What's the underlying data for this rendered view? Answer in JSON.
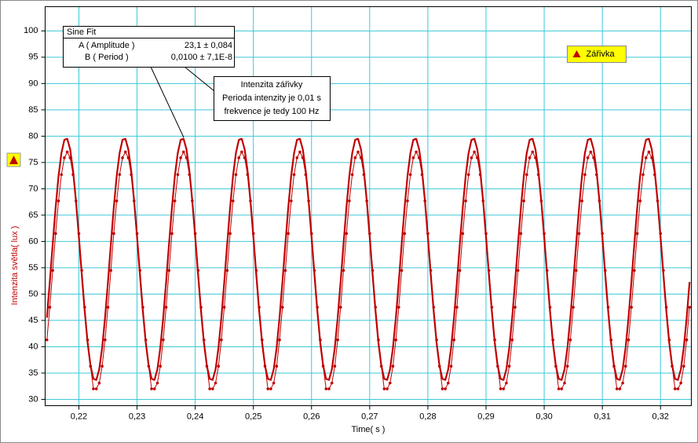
{
  "chart_data": {
    "type": "line",
    "x_label": "Time( s )",
    "y_label": "Intenzita světla( lux )",
    "xlim": [
      0.2142,
      0.3253
    ],
    "ylim": [
      28.8,
      104.6
    ],
    "xticks": [
      {
        "value": 0.22,
        "label": "0,22"
      },
      {
        "value": 0.23,
        "label": "0,23"
      },
      {
        "value": 0.24,
        "label": "0,24"
      },
      {
        "value": 0.25,
        "label": "0,25"
      },
      {
        "value": 0.26,
        "label": "0,26"
      },
      {
        "value": 0.27,
        "label": "0,27"
      },
      {
        "value": 0.28,
        "label": "0,28"
      },
      {
        "value": 0.29,
        "label": "0,29"
      },
      {
        "value": 0.3,
        "label": "0,30"
      },
      {
        "value": 0.31,
        "label": "0,31"
      },
      {
        "value": 0.32,
        "label": "0,32"
      }
    ],
    "yticks": [
      30,
      35,
      40,
      45,
      50,
      55,
      60,
      65,
      70,
      75,
      80,
      85,
      90,
      95,
      100
    ],
    "grid": true,
    "legend": "top-right",
    "x": [
      0.2145,
      0.215,
      0.2155,
      0.216,
      0.2165,
      0.217,
      0.2175,
      0.218,
      0.2185,
      0.219,
      0.2195,
      0.22,
      0.2205,
      0.221,
      0.2215,
      0.222,
      0.2225,
      0.223,
      0.2235,
      0.224,
      0.2245,
      0.225,
      0.2255,
      0.226,
      0.2265,
      0.227,
      0.2275,
      0.228,
      0.2285,
      0.229,
      0.2295,
      0.23,
      0.2305,
      0.231,
      0.2315,
      0.232,
      0.2325,
      0.233,
      0.2335,
      0.234,
      0.2345,
      0.235,
      0.2355,
      0.236,
      0.2365,
      0.237,
      0.2375,
      0.238,
      0.2385,
      0.239,
      0.2395,
      0.24,
      0.2405,
      0.241,
      0.2415,
      0.242,
      0.2425,
      0.243,
      0.2435,
      0.244,
      0.2445,
      0.245,
      0.2455,
      0.246,
      0.2465,
      0.247,
      0.2475,
      0.248,
      0.2485,
      0.249,
      0.2495,
      0.25,
      0.2505,
      0.251,
      0.2515,
      0.252,
      0.2525,
      0.253,
      0.2535,
      0.254,
      0.2545,
      0.255,
      0.2555,
      0.256,
      0.2565,
      0.257,
      0.2575,
      0.258,
      0.2585,
      0.259,
      0.2595,
      0.26,
      0.2605,
      0.261,
      0.2615,
      0.262,
      0.2625,
      0.263,
      0.2635,
      0.264,
      0.2645,
      0.265,
      0.2655,
      0.266,
      0.2665,
      0.267,
      0.2675,
      0.268,
      0.2685,
      0.269,
      0.2695,
      0.27,
      0.2705,
      0.271,
      0.2715,
      0.272,
      0.2725,
      0.273,
      0.2735,
      0.274,
      0.2745,
      0.275,
      0.2755,
      0.276,
      0.2765,
      0.277,
      0.2775,
      0.278,
      0.2785,
      0.279,
      0.2795,
      0.28,
      0.2805,
      0.281,
      0.2815,
      0.282,
      0.2825,
      0.283,
      0.2835,
      0.284,
      0.2845,
      0.285,
      0.2855,
      0.286,
      0.2865,
      0.287,
      0.2875,
      0.288,
      0.2885,
      0.289,
      0.2895,
      0.29,
      0.2905,
      0.291,
      0.2915,
      0.292,
      0.2925,
      0.293,
      0.2935,
      0.294,
      0.2945,
      0.295,
      0.2955,
      0.296,
      0.2965,
      0.297,
      0.2975,
      0.298,
      0.2985,
      0.299,
      0.2995,
      0.3,
      0.3005,
      0.301,
      0.3015,
      0.302,
      0.3025,
      0.303,
      0.3035,
      0.304,
      0.3045,
      0.305,
      0.3055,
      0.306,
      0.3065,
      0.307,
      0.3075,
      0.308,
      0.3085,
      0.309,
      0.3095,
      0.31,
      0.3105,
      0.311,
      0.3115,
      0.312,
      0.3125,
      0.313,
      0.3135,
      0.314,
      0.3145,
      0.315,
      0.3155,
      0.316,
      0.3165,
      0.317,
      0.3175,
      0.318,
      0.3185,
      0.319,
      0.3195,
      0.32,
      0.3205,
      0.321,
      0.3215,
      0.322,
      0.3225,
      0.323,
      0.3235,
      0.324,
      0.3245,
      0.325
    ],
    "series": [
      {
        "name": "Zářivka",
        "color": "#c00000",
        "markers": true,
        "values": [
          41.3,
          47.5,
          54.5,
          61.5,
          67.7,
          72.7,
          75.9,
          77.0,
          75.9,
          72.7,
          67.7,
          61.5,
          54.5,
          47.5,
          41.3,
          36.3,
          32.0,
          32.0,
          33.1,
          36.3,
          41.3,
          47.5,
          54.5,
          61.5,
          67.7,
          72.7,
          75.9,
          77.0,
          75.9,
          72.7,
          67.7,
          61.5,
          54.5,
          47.5,
          41.3,
          36.3,
          32.0,
          32.0,
          33.1,
          36.3,
          41.3,
          47.5,
          54.5,
          61.5,
          67.7,
          72.7,
          75.9,
          77.0,
          75.9,
          72.7,
          67.7,
          61.5,
          54.5,
          47.5,
          41.3,
          36.3,
          32.0,
          32.0,
          33.1,
          36.3,
          41.3,
          47.5,
          54.5,
          61.5,
          67.7,
          72.7,
          75.9,
          77.0,
          75.9,
          72.7,
          67.7,
          61.5,
          54.5,
          47.5,
          41.3,
          36.3,
          32.0,
          32.0,
          33.1,
          36.3,
          41.3,
          47.5,
          54.5,
          61.5,
          67.7,
          72.7,
          75.9,
          77.0,
          75.9,
          72.7,
          67.7,
          61.5,
          54.5,
          47.5,
          41.3,
          36.3,
          32.0,
          32.0,
          33.1,
          36.3,
          41.3,
          47.5,
          54.5,
          61.5,
          67.7,
          72.7,
          75.9,
          77.0,
          75.9,
          72.7,
          67.7,
          61.5,
          54.5,
          47.5,
          41.3,
          36.3,
          32.0,
          32.0,
          33.1,
          36.3,
          41.3,
          47.5,
          54.5,
          61.5,
          67.7,
          72.7,
          75.9,
          77.0,
          75.9,
          72.7,
          67.7,
          61.5,
          54.5,
          47.5,
          41.3,
          36.3,
          32.0,
          32.0,
          33.1,
          36.3,
          41.3,
          47.5,
          54.5,
          61.5,
          67.7,
          72.7,
          75.9,
          77.0,
          75.9,
          72.7,
          67.7,
          61.5,
          54.5,
          47.5,
          41.3,
          36.3,
          32.0,
          32.0,
          33.1,
          36.3,
          41.3,
          47.5,
          54.5,
          61.5,
          67.7,
          72.7,
          75.9,
          77.0,
          75.9,
          72.7,
          67.7,
          61.5,
          54.5,
          47.5,
          41.3,
          36.3,
          32.0,
          32.0,
          33.1,
          36.3,
          41.3,
          47.5,
          54.5,
          61.5,
          67.7,
          72.7,
          75.9,
          77.0,
          75.9,
          72.7,
          67.7,
          61.5,
          54.5,
          47.5,
          41.3,
          36.3,
          32.0,
          32.0,
          33.1,
          36.3,
          41.3,
          47.5,
          54.5,
          61.5,
          67.7,
          72.7,
          75.9,
          77.0,
          75.9,
          72.7,
          67.7,
          61.5,
          54.5,
          47.5,
          41.3,
          36.3,
          32.0,
          32.0,
          33.1,
          36.3,
          41.3,
          47.5
        ]
      },
      {
        "color": "#c00000",
        "markers": false,
        "values": [
          45.5,
          52.3,
          59.5,
          66.4,
          72.4,
          76.8,
          79.3,
          79.5,
          77.5,
          73.4,
          67.7,
          60.9,
          53.7,
          46.8,
          40.8,
          36.4,
          33.9,
          33.7,
          35.7,
          39.8,
          45.5,
          52.3,
          59.5,
          66.4,
          72.4,
          76.8,
          79.3,
          79.5,
          77.5,
          73.4,
          67.7,
          60.9,
          53.7,
          46.8,
          40.8,
          36.4,
          33.9,
          33.7,
          35.7,
          39.8,
          45.5,
          52.3,
          59.5,
          66.4,
          72.4,
          76.8,
          79.3,
          79.5,
          77.5,
          73.4,
          67.7,
          60.9,
          53.7,
          46.8,
          40.8,
          36.4,
          33.9,
          33.7,
          35.7,
          39.8,
          45.5,
          52.3,
          59.5,
          66.4,
          72.4,
          76.8,
          79.3,
          79.5,
          77.5,
          73.4,
          67.7,
          60.9,
          53.7,
          46.8,
          40.8,
          36.4,
          33.9,
          33.7,
          35.7,
          39.8,
          45.5,
          52.3,
          59.5,
          66.4,
          72.4,
          76.8,
          79.3,
          79.5,
          77.5,
          73.4,
          67.7,
          60.9,
          53.7,
          46.8,
          40.8,
          36.4,
          33.9,
          33.7,
          35.7,
          39.8,
          45.5,
          52.3,
          59.5,
          66.4,
          72.4,
          76.8,
          79.3,
          79.5,
          77.5,
          73.4,
          67.7,
          60.9,
          53.7,
          46.8,
          40.8,
          36.4,
          33.9,
          33.7,
          35.7,
          39.8,
          45.5,
          52.3,
          59.5,
          66.4,
          72.4,
          76.8,
          79.3,
          79.5,
          77.5,
          73.4,
          67.7,
          60.9,
          53.7,
          46.8,
          40.8,
          36.4,
          33.9,
          33.7,
          35.7,
          39.8,
          45.5,
          52.3,
          59.5,
          66.4,
          72.4,
          76.8,
          79.3,
          79.5,
          77.5,
          73.4,
          67.7,
          60.9,
          53.7,
          46.8,
          40.8,
          36.4,
          33.9,
          33.7,
          35.7,
          39.8,
          45.5,
          52.3,
          59.5,
          66.4,
          72.4,
          76.8,
          79.3,
          79.5,
          77.5,
          73.4,
          67.7,
          60.9,
          53.7,
          46.8,
          40.8,
          36.4,
          33.9,
          33.7,
          35.7,
          39.8,
          45.5,
          52.3,
          59.5,
          66.4,
          72.4,
          76.8,
          79.3,
          79.5,
          77.5,
          73.4,
          67.7,
          60.9,
          53.7,
          46.8,
          40.8,
          36.4,
          33.9,
          33.7,
          35.7,
          39.8,
          45.5,
          52.3,
          59.5,
          66.4,
          72.4,
          76.8,
          79.3,
          79.5,
          77.5,
          73.4,
          67.7,
          60.9,
          53.7,
          46.8,
          40.8,
          36.4,
          33.9,
          33.7,
          35.7,
          39.8,
          45.5,
          52.3
        ]
      }
    ],
    "annotations": {
      "fit_box": {
        "title": "Sine Fit",
        "rows": [
          [
            "A ( Amplitude )",
            "23,1 ± 0,084"
          ],
          [
            "B ( Period )",
            "0,0100 ± 7,1E-8"
          ]
        ]
      },
      "note": [
        "Intenzita zářivky",
        "Perioda intenzity je 0,01 s",
        "frekvence je tedy 100 Hz"
      ]
    }
  }
}
